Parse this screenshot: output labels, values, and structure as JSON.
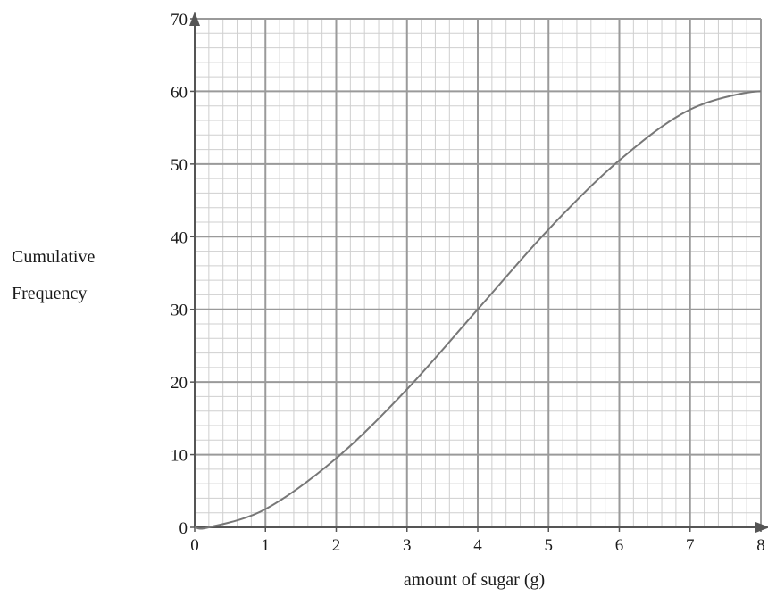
{
  "chart_data": {
    "type": "line",
    "title": "",
    "xlabel": "amount of sugar (g)",
    "ylabel_lines": [
      "Cumulative",
      "Frequency"
    ],
    "xlim": [
      0,
      8
    ],
    "ylim": [
      0,
      70
    ],
    "x_ticks": [
      "0",
      "1",
      "2",
      "3",
      "4",
      "5",
      "6",
      "7",
      "8"
    ],
    "y_ticks": [
      "0",
      "10",
      "20",
      "30",
      "40",
      "50",
      "60",
      "70"
    ],
    "grid": true,
    "grid_minor_x": 0.2,
    "grid_minor_y": 2,
    "series": [
      {
        "x": [
          0.2,
          1,
          2,
          3,
          4,
          5,
          6,
          7,
          8
        ],
        "values": [
          0,
          2.5,
          9.5,
          19,
          30,
          41,
          50.5,
          57.5,
          60
        ]
      }
    ],
    "colors": {
      "curve": "#777777",
      "grid_major": "#9a9a9a",
      "grid_minor": "#cfcfcf",
      "axis": "#555555"
    }
  }
}
